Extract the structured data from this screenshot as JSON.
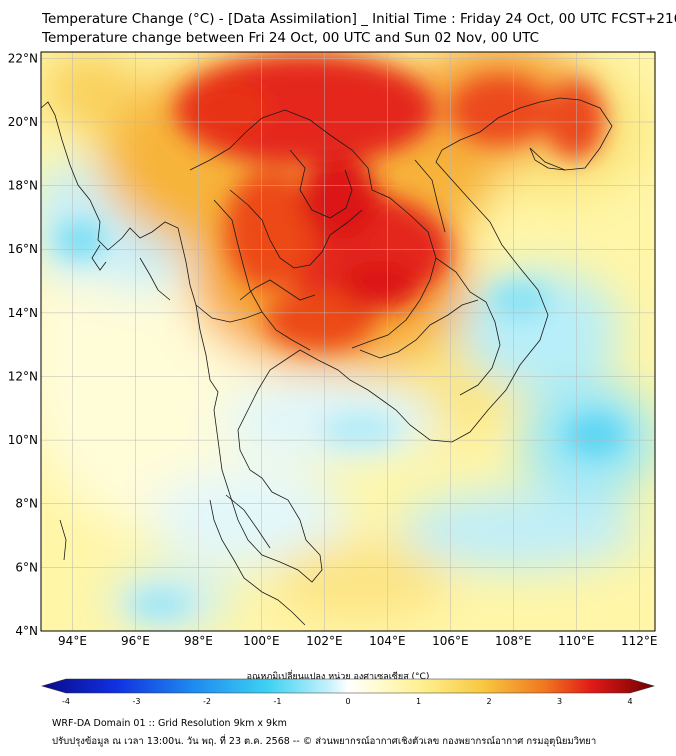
{
  "header": {
    "title_line1": "Temperature Change (°C) - [Data Assimilation] _ Initial Time : Friday 24 Oct, 00 UTC FCST+216",
    "title_line2": "Temperature change between Fri 24 Oct, 00 UTC and Sun 02 Nov, 00 UTC"
  },
  "map": {
    "lon_range": [
      93,
      112.5
    ],
    "lat_range": [
      4,
      22.2
    ],
    "lat_ticks": [
      {
        "value": 22,
        "label": "22°N"
      },
      {
        "value": 20,
        "label": "20°N"
      },
      {
        "value": 18,
        "label": "18°N"
      },
      {
        "value": 16,
        "label": "16°N"
      },
      {
        "value": 14,
        "label": "14°N"
      },
      {
        "value": 12,
        "label": "12°N"
      },
      {
        "value": 10,
        "label": "10°N"
      },
      {
        "value": 8,
        "label": "8°N"
      },
      {
        "value": 6,
        "label": "6°N"
      },
      {
        "value": 4,
        "label": "4°N"
      }
    ],
    "lon_ticks": [
      {
        "value": 94,
        "label": "94°E"
      },
      {
        "value": 96,
        "label": "96°E"
      },
      {
        "value": 98,
        "label": "98°E"
      },
      {
        "value": 100,
        "label": "100°E"
      },
      {
        "value": 102,
        "label": "102°E"
      },
      {
        "value": 104,
        "label": "104°E"
      },
      {
        "value": 106,
        "label": "106°E"
      },
      {
        "value": 108,
        "label": "108°E"
      },
      {
        "value": 110,
        "label": "110°E"
      },
      {
        "value": 112,
        "label": "112°E"
      }
    ],
    "colors": {
      "ocean_base": "#fff6a8",
      "cool_light": "#a8ecf8",
      "cool": "#4fd6f2",
      "warm": "#f6b030",
      "hot": "#f05a1a",
      "very_hot": "#e01010",
      "border": "#1a1a1a"
    }
  },
  "colorbar": {
    "title": "อุณหภูมิเปลี่ยนแปลง หน่วย องศาเซลเซียส (°C)",
    "min": -4,
    "max": 4,
    "ticks": [
      {
        "value": -4,
        "label": "-4"
      },
      {
        "value": -3,
        "label": "-3"
      },
      {
        "value": -2,
        "label": "-2"
      },
      {
        "value": -1,
        "label": "-1"
      },
      {
        "value": 0,
        "label": "0"
      },
      {
        "value": 1,
        "label": "1"
      },
      {
        "value": 2,
        "label": "2"
      },
      {
        "value": 3,
        "label": "3"
      },
      {
        "value": 4,
        "label": "4"
      }
    ]
  },
  "footer": {
    "line1": "WRF-DA Domain 01 :: Grid Resolution 9km x 9km",
    "line2": "ปรับปรุงข้อมูล ณ เวลา 13:00น. วัน พฤ. ที่ 23 ต.ค. 2568 -- © ส่วนพยากรณ์อากาศเชิงตัวเลข กองพยากรณ์อากาศ กรมอุตุนิยมวิทยา"
  }
}
